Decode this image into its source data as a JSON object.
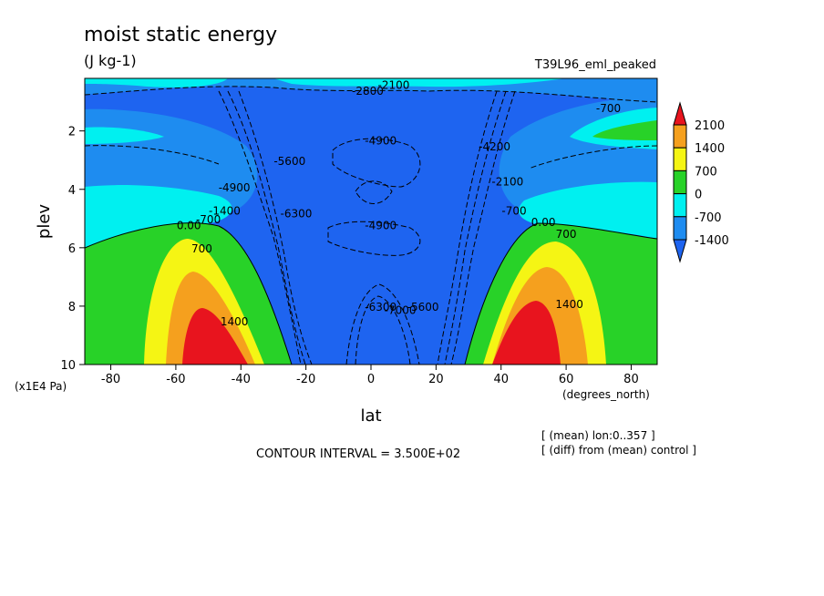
{
  "chart_data": {
    "type": "heatmap",
    "title": "moist static energy",
    "subtitle": "(J kg-1)",
    "run_label": "T39L96_eml_peaked",
    "xlabel": "lat",
    "xunits": "(degrees_north)",
    "ylabel": "plev",
    "yunits": "(x1E4 Pa)",
    "xlim": [
      -88,
      88
    ],
    "ylim": [
      10,
      0.2
    ],
    "x_ticks": [
      -80,
      -60,
      -40,
      -20,
      0,
      20,
      40,
      60,
      80
    ],
    "x_tick_labels": [
      "-80",
      "-60",
      "-40",
      "-20",
      "0",
      "20",
      "40",
      "60",
      "80"
    ],
    "y_ticks": [
      2,
      4,
      6,
      8,
      10
    ],
    "y_tick_labels": [
      "2",
      "4",
      "6",
      "8",
      "10"
    ],
    "contour_interval_text": "CONTOUR INTERVAL = 3.500E+02",
    "notes": [
      "[ (mean) lon:0..357 ]",
      "[ (diff) from (mean) control ]"
    ],
    "colorbar": {
      "levels": [
        2100,
        1400,
        700,
        0,
        -700,
        -1400
      ],
      "labels": [
        "2100",
        "1400",
        "700",
        "0",
        "-700",
        "-1400"
      ],
      "colors": [
        "#e8141e",
        "#f5a01e",
        "#f5f514",
        "#28d228",
        "#00f0f0",
        "#1e8cf0",
        "#1e64f0"
      ]
    },
    "contour_labels": [
      {
        "text": "-2800",
        "lat": -1,
        "plev": 0.7
      },
      {
        "text": "-2100",
        "lat": 7,
        "plev": 0.5
      },
      {
        "text": "-700",
        "lat": 73,
        "plev": 1.3
      },
      {
        "text": "-4900",
        "lat": 3,
        "plev": 2.4
      },
      {
        "text": "-5600",
        "lat": -25,
        "plev": 3.1
      },
      {
        "text": "-4900",
        "lat": 3,
        "plev": 5.3
      },
      {
        "text": "-6300",
        "lat": -23,
        "plev": 4.9
      },
      {
        "text": "-1400",
        "lat": -45,
        "plev": 4.8
      },
      {
        "text": "-700",
        "lat": -50,
        "plev": 5.1
      },
      {
        "text": "0.00",
        "lat": -56,
        "plev": 5.3
      },
      {
        "text": "700",
        "lat": -52,
        "plev": 6.1
      },
      {
        "text": "1400",
        "lat": -42,
        "plev": 8.6
      },
      {
        "text": "-700",
        "lat": 44,
        "plev": 4.8
      },
      {
        "text": "0.00",
        "lat": 53,
        "plev": 5.2
      },
      {
        "text": "700",
        "lat": 60,
        "plev": 5.6
      },
      {
        "text": "1400",
        "lat": 61,
        "plev": 8.0
      },
      {
        "text": "-6300",
        "lat": 3,
        "plev": 8.1
      },
      {
        "text": "-7000",
        "lat": 9,
        "plev": 8.2
      },
      {
        "text": "-5600",
        "lat": 16,
        "plev": 8.1
      },
      {
        "text": "-4200",
        "lat": 38,
        "plev": 2.6
      },
      {
        "text": "-2100",
        "lat": 42,
        "plev": 3.8
      },
      {
        "text": "-4900",
        "lat": -42,
        "plev": 4.0
      }
    ],
    "grid": false,
    "legend_position": "right"
  }
}
